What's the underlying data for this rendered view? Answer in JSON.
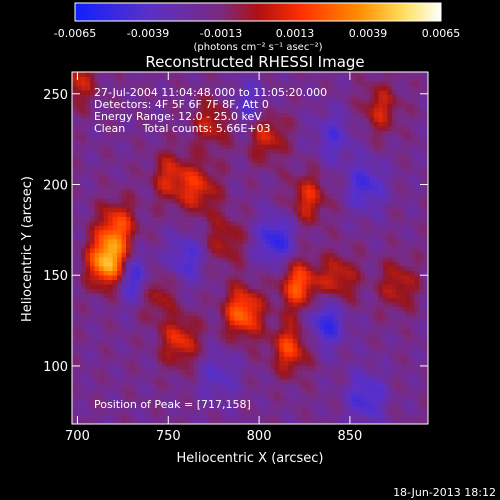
{
  "colorbar": {
    "ticks": [
      "-0.0065",
      "-0.0039",
      "-0.0013",
      "0.0013",
      "0.0039",
      "0.0065"
    ],
    "tick_values": [
      -0.0065,
      -0.0039,
      -0.0013,
      0.0013,
      0.0039,
      0.0065
    ],
    "unit_label": "(photons cm⁻² s⁻¹ asec⁻²)",
    "colors": [
      "#1020ff",
      "#5a30c8",
      "#7a2a80",
      "#b01010",
      "#ff3000",
      "#ff9000",
      "#ffe060",
      "#ffffff"
    ]
  },
  "chart_data": {
    "type": "heatmap",
    "title": "Reconstructed RHESSI Image",
    "xlabel": "Heliocentric X (arcsec)",
    "ylabel": "Heliocentric Y (arcsec)",
    "xlim": [
      697,
      893
    ],
    "ylim": [
      68,
      262
    ],
    "xticks": [
      700,
      750,
      800,
      850
    ],
    "yticks": [
      100,
      150,
      200,
      250
    ],
    "xtick_labels": [
      "700",
      "750",
      "800",
      "850"
    ],
    "ytick_labels": [
      "100",
      "150",
      "200",
      "250"
    ],
    "annotations": [
      "27-Jul-2004 11:04:48.000 to 11:05:20.000",
      "Detectors: 4F 5F 6F 7F 8F, Att 0",
      "Energy Range: 12.0 - 25.0 keV",
      "Clean     Total counts: 5.66E+03"
    ],
    "peak_label": "Position of Peak = [717,158]",
    "peak": [
      717,
      158
    ],
    "sources": [
      {
        "x": 717,
        "y": 158,
        "v": 1.0
      },
      {
        "x": 722,
        "y": 178,
        "v": 0.55
      },
      {
        "x": 742,
        "y": 142,
        "v": 0.5
      },
      {
        "x": 757,
        "y": 114,
        "v": 0.5
      },
      {
        "x": 752,
        "y": 205,
        "v": 0.45
      },
      {
        "x": 768,
        "y": 198,
        "v": 0.45
      },
      {
        "x": 775,
        "y": 235,
        "v": 0.4
      },
      {
        "x": 792,
        "y": 130,
        "v": 0.7
      },
      {
        "x": 805,
        "y": 228,
        "v": 0.45
      },
      {
        "x": 828,
        "y": 193,
        "v": 0.45
      },
      {
        "x": 823,
        "y": 145,
        "v": 0.65
      },
      {
        "x": 845,
        "y": 148,
        "v": 0.45
      },
      {
        "x": 818,
        "y": 110,
        "v": 0.55
      },
      {
        "x": 878,
        "y": 145,
        "v": 0.4
      },
      {
        "x": 868,
        "y": 243,
        "v": 0.4
      },
      {
        "x": 700,
        "y": 258,
        "v": 0.4
      },
      {
        "x": 782,
        "y": 170,
        "v": 0.35
      }
    ],
    "minima": [
      {
        "x": 733,
        "y": 148,
        "v": -0.65
      },
      {
        "x": 810,
        "y": 170,
        "v": -0.55
      },
      {
        "x": 860,
        "y": 200,
        "v": -0.45
      },
      {
        "x": 838,
        "y": 125,
        "v": -0.55
      },
      {
        "x": 860,
        "y": 83,
        "v": -0.45
      },
      {
        "x": 760,
        "y": 160,
        "v": -0.4
      },
      {
        "x": 795,
        "y": 245,
        "v": -0.35
      },
      {
        "x": 842,
        "y": 227,
        "v": -0.35
      },
      {
        "x": 778,
        "y": 95,
        "v": -0.3
      }
    ]
  },
  "footer": {
    "date": "18-Jun-2013 18:12"
  }
}
